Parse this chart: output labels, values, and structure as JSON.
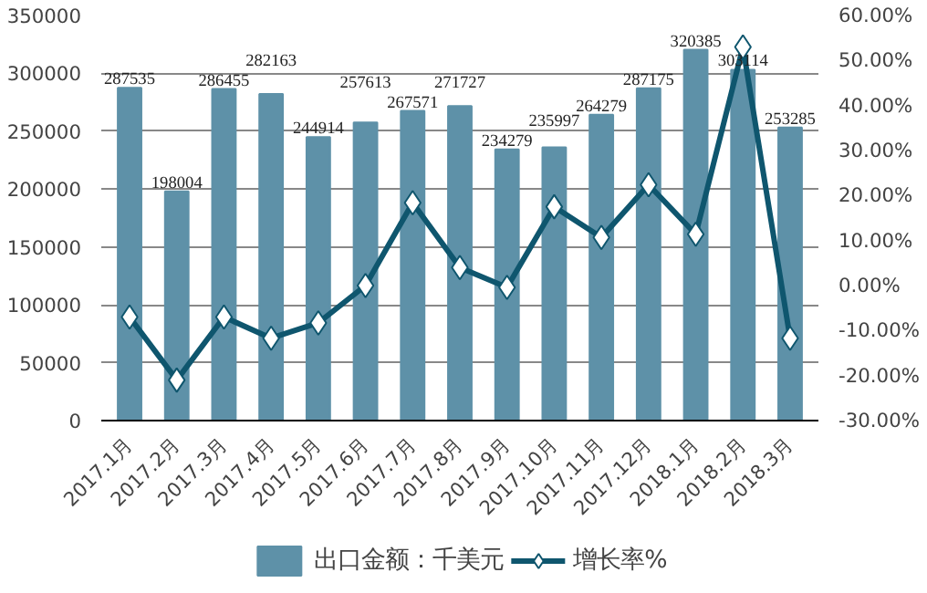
{
  "chart_data": {
    "type": "bar",
    "categories": [
      "2017.1月",
      "2017.2月",
      "2017.3月",
      "2017.4月",
      "2017.5月",
      "2017.6月",
      "2017.7月",
      "2017.8月",
      "2017.9月",
      "2017.10月",
      "2017.11月",
      "2017.12月",
      "2018.1月",
      "2018.2月",
      "2018.3月"
    ],
    "series": [
      {
        "name": "出口金额：千美元",
        "color": "#5e91a8",
        "values": [
          287535,
          198004,
          286455,
          282163,
          244914,
          257613,
          267571,
          271727,
          234279,
          235997,
          264279,
          287175,
          320385,
          303114,
          253285
        ],
        "data_labels": true
      },
      {
        "name": "增长率%",
        "type": "line",
        "axis": "y2",
        "color": "#0f566e",
        "marker": "diamond",
        "values": [
          -7.0,
          -21,
          -7.0,
          -11.7,
          -8.3,
          0,
          18.4,
          4,
          -0.4,
          17.5,
          10.7,
          22.4,
          11.4,
          53,
          -11.7
        ]
      }
    ],
    "ylim": [
      0,
      350000
    ],
    "yticks": [
      0,
      50000,
      100000,
      150000,
      200000,
      250000,
      300000,
      350000
    ],
    "y2lim": [
      -30,
      60
    ],
    "y2ticks": [
      {
        "value": -30,
        "label": "-30.00%"
      },
      {
        "value": -20,
        "label": "-20.00%"
      },
      {
        "value": -10,
        "label": "-10.00%"
      },
      {
        "value": 0,
        "label": "0.00%"
      },
      {
        "value": 10,
        "label": "10.00%"
      },
      {
        "value": 20,
        "label": "20.00%"
      },
      {
        "value": 30,
        "label": "30.00%"
      },
      {
        "value": 40,
        "label": "40.00%"
      },
      {
        "value": 50,
        "label": "50.00%"
      },
      {
        "value": 60,
        "label": "60.00%"
      }
    ],
    "grid": "y",
    "legend": "bottom"
  }
}
